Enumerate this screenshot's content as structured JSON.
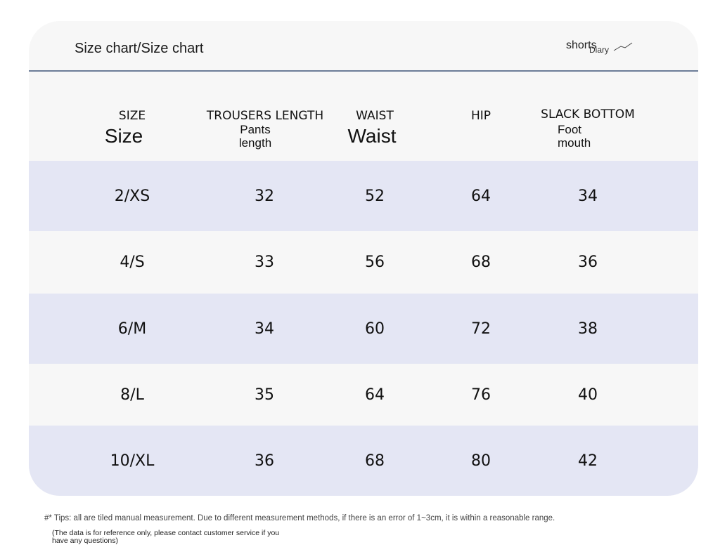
{
  "header": {
    "title": "Size chart/Size chart",
    "brand_text": "shorts",
    "brand_sub": "Diary"
  },
  "columns": [
    {
      "en": "SIZE",
      "sub": "Size"
    },
    {
      "en": "TROUSERS LENGTH",
      "sub": "Pants length"
    },
    {
      "en": "WAIST",
      "sub": "Waist"
    },
    {
      "en": "HIP",
      "sub": ""
    },
    {
      "en": "SLACK BOTTOM",
      "sub": "Foot mouth"
    }
  ],
  "rows": [
    [
      "2/XS",
      "32",
      "52",
      "64",
      "34"
    ],
    [
      "4/S",
      "33",
      "56",
      "68",
      "36"
    ],
    [
      "6/M",
      "34",
      "60",
      "72",
      "38"
    ],
    [
      "8/L",
      "35",
      "64",
      "76",
      "40"
    ],
    [
      "10/XL",
      "36",
      "68",
      "80",
      "42"
    ]
  ],
  "footer": {
    "tips": "#* Tips: all are tiled manual measurement. Due to different measurement methods, if there is an error of 1~3cm, it is within a reasonable range.",
    "note": "(The data is for reference only, please contact customer service if you have any questions)"
  },
  "colors": {
    "shaded_row": "#e4e6f4",
    "plain_row": "#f7f7f7",
    "divider": "#6c7c98"
  }
}
